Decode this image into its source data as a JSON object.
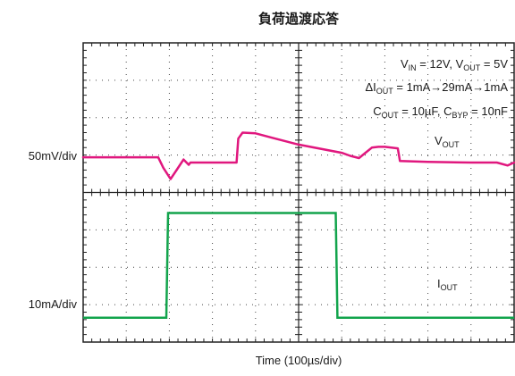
{
  "title": "負荷過渡応答",
  "xlabel": "Time (100µs/div)",
  "conditions": {
    "line1": {
      "a": "V",
      "a_sub": "IN",
      "b": " = 12V, V",
      "b_sub": "OUT",
      "c": " = 5V"
    },
    "line2": {
      "a": "ΔI",
      "a_sub": "OUT",
      "b": " = 1mA→29mA→1mA"
    },
    "line3": {
      "a": "C",
      "a_sub": "OUT",
      "b": " = 10µF, C",
      "b_sub": "BYP",
      "c": " = 10nF"
    }
  },
  "colors": {
    "vout": "#e0177e",
    "iout": "#12a44c",
    "grid": "#222222"
  },
  "chart_data": {
    "type": "line",
    "title": "負荷過渡応答",
    "xlabel": "Time (100µs/div)",
    "x_divisions": 10,
    "grid": true,
    "series": [
      {
        "name": "VOUT",
        "name_main": "V",
        "name_sub": "OUT",
        "scale_label": "50mV/div",
        "ylabel": "50mV/div",
        "units": "mV relative to baseline",
        "x": [
          0.0,
          1.74,
          1.86,
          2.03,
          2.18,
          2.33,
          2.45,
          2.49,
          3.56,
          3.6,
          3.7,
          4.0,
          4.4,
          5.0,
          6.0,
          6.2,
          6.4,
          6.55,
          6.7,
          6.85,
          7.0,
          7.3,
          7.35,
          8.0,
          9.0,
          9.6,
          9.85,
          10.0
        ],
        "y": [
          0,
          0,
          -14,
          -29,
          -16,
          -3,
          -10,
          -7,
          -7,
          25,
          33,
          32,
          26,
          17,
          6,
          2,
          -1,
          6,
          13,
          14,
          14,
          12,
          -5,
          -6,
          -7,
          -7,
          -11,
          -7
        ]
      },
      {
        "name": "IOUT",
        "name_main": "I",
        "name_sub": "OUT",
        "scale_label": "10mA/div",
        "ylabel": "10mA/div",
        "units": "mA",
        "x": [
          0.0,
          1.93,
          1.97,
          5.86,
          5.9,
          10.0
        ],
        "y": [
          1,
          1,
          29,
          29,
          1,
          1
        ]
      }
    ]
  }
}
